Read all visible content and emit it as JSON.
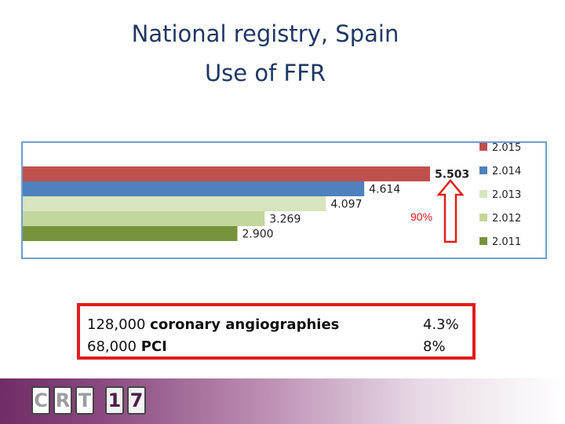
{
  "title": {
    "line1": "National registry, Spain",
    "line2": "Use of FFR"
  },
  "chart_data": {
    "type": "bar",
    "orientation": "horizontal",
    "series": [
      {
        "name": "2.015",
        "value": 5.503,
        "label": "5.503",
        "color": "#c0504d",
        "label_bold": true
      },
      {
        "name": "2.014",
        "value": 4.614,
        "label": "4.614",
        "color": "#4f81bd"
      },
      {
        "name": "2.013",
        "value": 4.097,
        "label": "4.097",
        "color": "#d7e4bd"
      },
      {
        "name": "2.012",
        "value": 3.269,
        "label": "3.269",
        "color": "#c3d69b"
      },
      {
        "name": "2.011",
        "value": 2.9,
        "label": "2.900",
        "color": "#77933c"
      }
    ],
    "xlim": [
      0,
      5.503
    ],
    "annotation": {
      "text": "90%",
      "color": "#e21b1b"
    },
    "legend_position": "right",
    "grid": false
  },
  "info_box": {
    "left_lines": [
      {
        "number": "128,000",
        "text": "coronary angiographies"
      },
      {
        "number": "68,000",
        "text": "PCI"
      }
    ],
    "right_lines": [
      "4.3%",
      "8%"
    ]
  },
  "footer": {
    "logo": {
      "left": [
        "C",
        "R",
        "T"
      ],
      "right": [
        "1",
        "7"
      ],
      "colors": {
        "left": "#9e9e9e",
        "right": "#4b1f47"
      }
    }
  }
}
